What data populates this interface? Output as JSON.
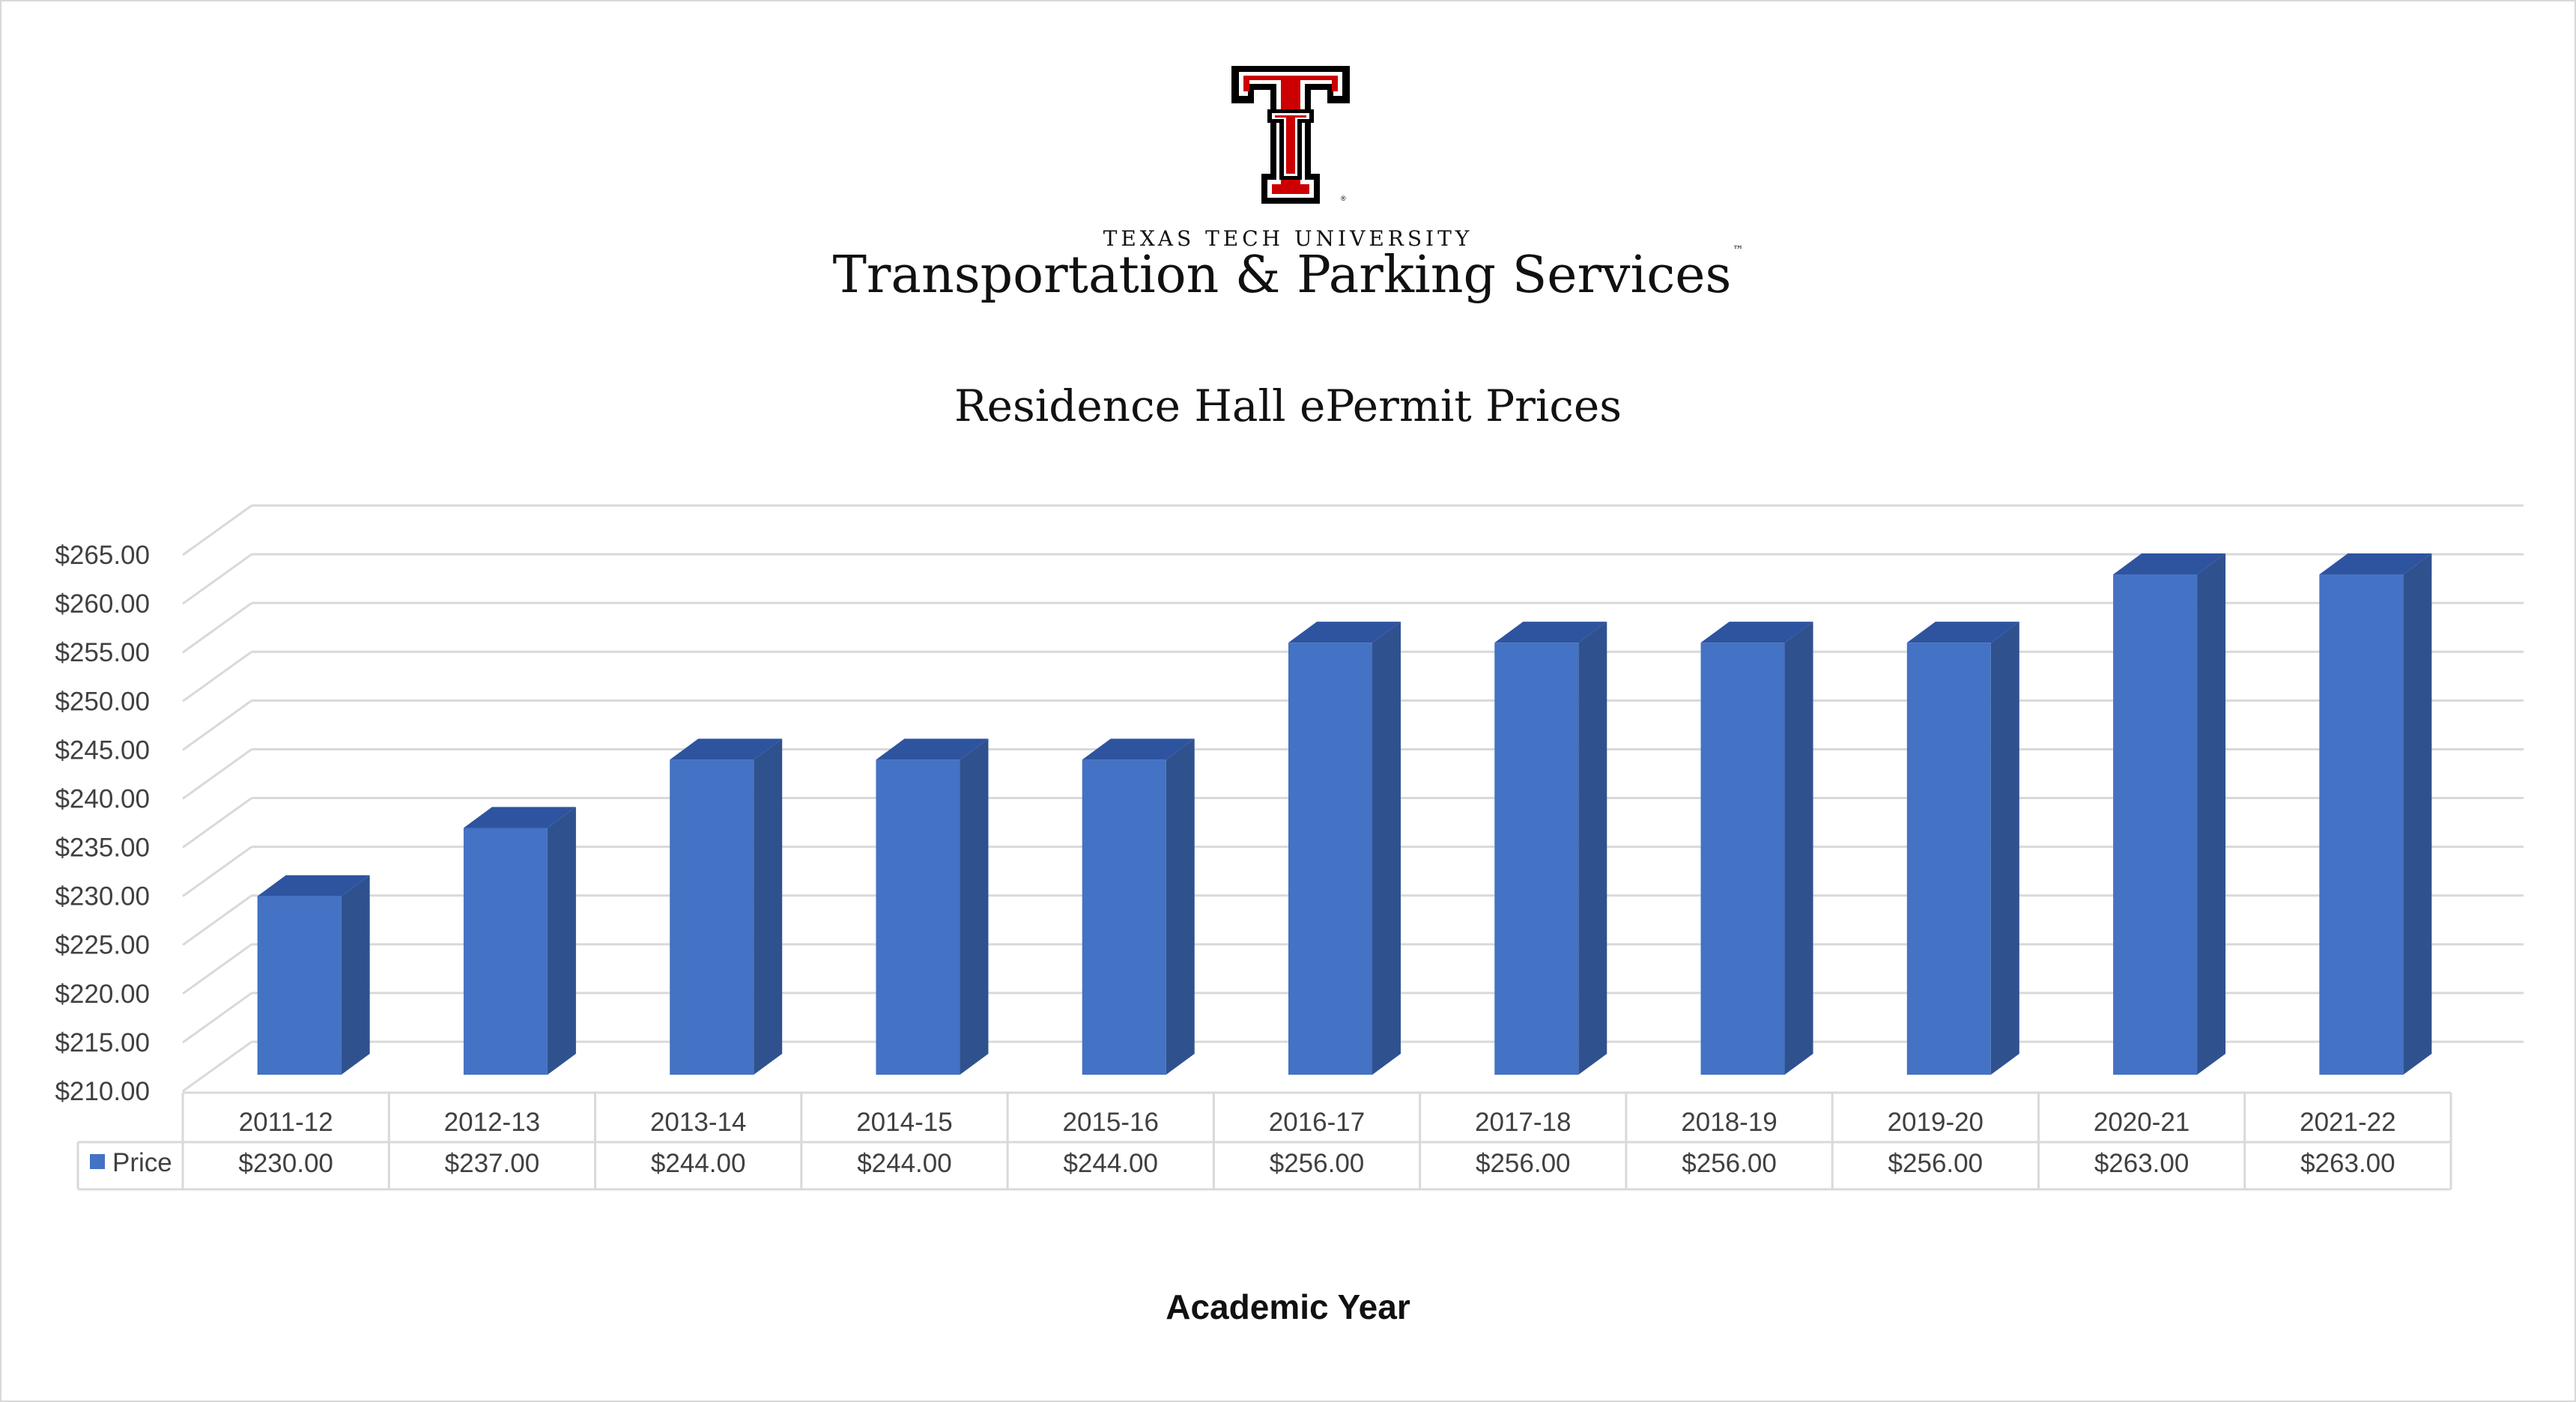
{
  "header": {
    "university": "TEXAS TECH UNIVERSITY",
    "department": "Transportation & Parking Services",
    "trademark": "™"
  },
  "icons": {
    "logo": "double-t-logo-icon",
    "legend_marker": "square-marker-icon"
  },
  "colors": {
    "bar_front": "#4472c4",
    "bar_side": "#2f528f",
    "bar_top": "#2e54a0",
    "logo_red": "#cc0000",
    "logo_black": "#000000"
  },
  "chart_data": {
    "type": "bar",
    "title": "Residence Hall ePermit Prices",
    "xlabel": "Academic Year",
    "ylabel": "",
    "categories": [
      "2011-12",
      "2012-13",
      "2013-14",
      "2014-15",
      "2015-16",
      "2016-17",
      "2017-18",
      "2018-19",
      "2019-20",
      "2020-21",
      "2021-22"
    ],
    "series": [
      {
        "name": "Price",
        "values": [
          230,
          237,
          244,
          244,
          244,
          256,
          256,
          256,
          256,
          263,
          263
        ]
      }
    ],
    "ylim": [
      210,
      265
    ],
    "y_ticks": [
      "$210.00",
      "$215.00",
      "$220.00",
      "$225.00",
      "$230.00",
      "$235.00",
      "$240.00",
      "$245.00",
      "$250.00",
      "$255.00",
      "$260.00",
      "$265.00"
    ],
    "data_table": {
      "row_label": "Price",
      "values": [
        "$230.00",
        "$237.00",
        "$244.00",
        "$244.00",
        "$244.00",
        "$256.00",
        "$256.00",
        "$256.00",
        "$256.00",
        "$263.00",
        "$263.00"
      ]
    },
    "grid": true,
    "style": "3d-column",
    "legend": "data-table"
  }
}
